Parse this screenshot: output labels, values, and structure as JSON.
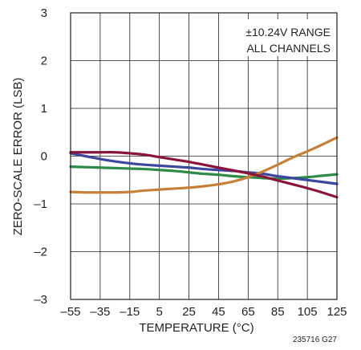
{
  "chart_data": {
    "type": "line",
    "xlabel": "TEMPERATURE  (°C)",
    "ylabel": "ZERO-SCALE ERROR (LSB)",
    "xlim": [
      -55,
      125
    ],
    "ylim": [
      -3,
      3
    ],
    "x_ticks": [
      "–55",
      "–35",
      "–15",
      "5",
      "25",
      "45",
      "65",
      "85",
      "105",
      "125"
    ],
    "x_tick_values": [
      -55,
      -35,
      -15,
      5,
      25,
      45,
      65,
      85,
      105,
      125
    ],
    "y_ticks": [
      "3",
      "2",
      "1",
      "0",
      "–1",
      "–2",
      "–3"
    ],
    "y_tick_values": [
      3,
      2,
      1,
      0,
      -1,
      -2,
      -3
    ],
    "grid": true,
    "annotation": [
      "±10.24V RANGE",
      "ALL CHANNELS"
    ],
    "figure_code": "235716 G27",
    "series": [
      {
        "color": "#3c479d",
        "x": [
          -55,
          -45,
          -35,
          -25,
          -15,
          -5,
          5,
          15,
          25,
          35,
          45,
          55,
          65,
          75,
          85,
          95,
          105,
          115,
          125
        ],
        "y": [
          0.06,
          0.0,
          -0.06,
          -0.11,
          -0.15,
          -0.18,
          -0.2,
          -0.22,
          -0.24,
          -0.27,
          -0.29,
          -0.31,
          -0.34,
          -0.37,
          -0.42,
          -0.46,
          -0.5,
          -0.54,
          -0.58
        ]
      },
      {
        "color": "#2e8b4a",
        "x": [
          -55,
          -45,
          -35,
          -25,
          -15,
          -5,
          5,
          15,
          25,
          35,
          45,
          55,
          65,
          75,
          85,
          95,
          105,
          115,
          125
        ],
        "y": [
          -0.22,
          -0.23,
          -0.24,
          -0.25,
          -0.26,
          -0.27,
          -0.29,
          -0.31,
          -0.34,
          -0.37,
          -0.39,
          -0.42,
          -0.44,
          -0.46,
          -0.47,
          -0.46,
          -0.44,
          -0.41,
          -0.38
        ]
      },
      {
        "color": "#8b1538",
        "x": [
          -55,
          -45,
          -35,
          -25,
          -15,
          -5,
          5,
          15,
          25,
          35,
          45,
          55,
          65,
          75,
          85,
          95,
          105,
          115,
          125
        ],
        "y": [
          0.08,
          0.08,
          0.08,
          0.08,
          0.06,
          0.03,
          -0.02,
          -0.07,
          -0.12,
          -0.18,
          -0.24,
          -0.3,
          -0.36,
          -0.43,
          -0.51,
          -0.59,
          -0.67,
          -0.76,
          -0.86
        ]
      },
      {
        "color": "#c7803a",
        "x": [
          -55,
          -45,
          -35,
          -25,
          -15,
          -5,
          5,
          15,
          25,
          35,
          45,
          55,
          65,
          75,
          85,
          95,
          105,
          115,
          125
        ],
        "y": [
          -0.75,
          -0.76,
          -0.76,
          -0.76,
          -0.75,
          -0.72,
          -0.7,
          -0.68,
          -0.66,
          -0.63,
          -0.59,
          -0.53,
          -0.44,
          -0.32,
          -0.18,
          -0.03,
          0.1,
          0.24,
          0.39
        ]
      }
    ]
  }
}
